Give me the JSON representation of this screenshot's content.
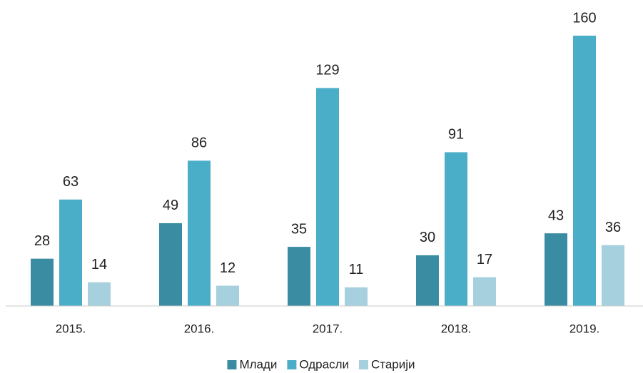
{
  "chart_data": {
    "type": "bar",
    "categories": [
      "2015.",
      "2016.",
      "2017.",
      "2018.",
      "2019."
    ],
    "series": [
      {
        "name": "Млади",
        "color": "#3a8ca3",
        "values": [
          28,
          49,
          35,
          30,
          43
        ]
      },
      {
        "name": "Одрасли",
        "color": "#4aaec8",
        "values": [
          63,
          86,
          129,
          91,
          160
        ]
      },
      {
        "name": "Старији",
        "color": "#a6d0de",
        "values": [
          14,
          12,
          11,
          17,
          36
        ]
      }
    ],
    "ylim": [
      0,
      160
    ],
    "grid": false,
    "legend": "bottom"
  }
}
